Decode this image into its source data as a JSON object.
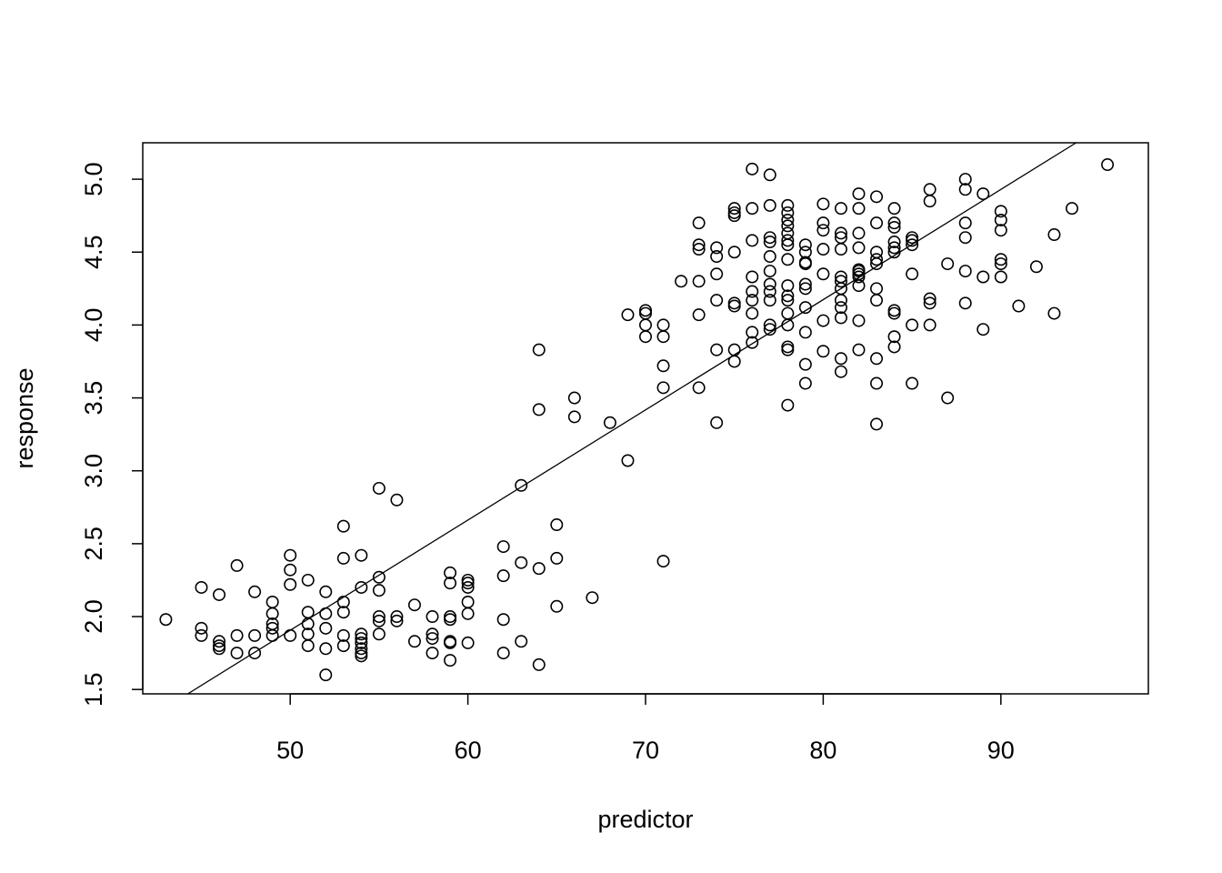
{
  "chart_data": {
    "type": "scatter",
    "title": "",
    "xlabel": "predictor",
    "ylabel": "response",
    "xlim": [
      41.7,
      98.3
    ],
    "ylim": [
      1.47,
      5.25
    ],
    "x_ticks": [
      50,
      60,
      70,
      80,
      90
    ],
    "y_ticks": [
      1.5,
      2.0,
      2.5,
      3.0,
      3.5,
      4.0,
      4.5,
      5.0
    ],
    "x_tick_labels": [
      "50",
      "60",
      "70",
      "80",
      "90"
    ],
    "y_tick_labels": [
      "1.5",
      "2.0",
      "2.5",
      "3.0",
      "3.5",
      "4.0",
      "4.5",
      "5.0"
    ],
    "grid": false,
    "legend": "none",
    "fit_line": {
      "intercept": -1.874,
      "slope": 0.0756
    },
    "marker_color": "#000000",
    "points": [
      [
        43,
        1.98
      ],
      [
        45,
        2.2
      ],
      [
        45,
        1.92
      ],
      [
        45,
        1.87
      ],
      [
        46,
        1.8
      ],
      [
        46,
        1.83
      ],
      [
        46,
        2.15
      ],
      [
        46,
        1.78
      ],
      [
        47,
        1.75
      ],
      [
        47,
        1.87
      ],
      [
        47,
        2.35
      ],
      [
        48,
        1.87
      ],
      [
        48,
        2.17
      ],
      [
        48,
        1.75
      ],
      [
        49,
        1.95
      ],
      [
        49,
        2.02
      ],
      [
        49,
        1.87
      ],
      [
        49,
        1.92
      ],
      [
        49,
        2.1
      ],
      [
        50,
        2.42
      ],
      [
        50,
        2.32
      ],
      [
        50,
        2.22
      ],
      [
        50,
        1.87
      ],
      [
        51,
        2.25
      ],
      [
        51,
        2.03
      ],
      [
        51,
        1.95
      ],
      [
        51,
        1.88
      ],
      [
        51,
        1.8
      ],
      [
        52,
        2.17
      ],
      [
        52,
        2.02
      ],
      [
        52,
        1.92
      ],
      [
        52,
        1.78
      ],
      [
        52,
        1.6
      ],
      [
        53,
        2.62
      ],
      [
        53,
        2.4
      ],
      [
        53,
        2.1
      ],
      [
        53,
        2.03
      ],
      [
        53,
        1.87
      ],
      [
        53,
        1.8
      ],
      [
        54,
        2.42
      ],
      [
        54,
        2.2
      ],
      [
        54,
        1.88
      ],
      [
        54,
        1.85
      ],
      [
        54,
        1.82
      ],
      [
        54,
        1.78
      ],
      [
        54,
        1.75
      ],
      [
        54,
        1.73
      ],
      [
        55,
        2.88
      ],
      [
        55,
        2.27
      ],
      [
        55,
        2.18
      ],
      [
        55,
        2.0
      ],
      [
        55,
        1.97
      ],
      [
        55,
        1.88
      ],
      [
        56,
        2.8
      ],
      [
        56,
        2.0
      ],
      [
        56,
        1.97
      ],
      [
        57,
        2.08
      ],
      [
        57,
        1.83
      ],
      [
        58,
        2.0
      ],
      [
        58,
        1.88
      ],
      [
        58,
        1.85
      ],
      [
        58,
        1.75
      ],
      [
        59,
        2.3
      ],
      [
        59,
        2.23
      ],
      [
        59,
        2.0
      ],
      [
        59,
        1.98
      ],
      [
        59,
        1.83
      ],
      [
        59,
        1.82
      ],
      [
        59,
        1.7
      ],
      [
        60,
        2.25
      ],
      [
        60,
        2.23
      ],
      [
        60,
        2.2
      ],
      [
        60,
        2.1
      ],
      [
        60,
        2.02
      ],
      [
        60,
        1.82
      ],
      [
        62,
        2.48
      ],
      [
        62,
        2.28
      ],
      [
        62,
        1.98
      ],
      [
        62,
        1.75
      ],
      [
        63,
        2.9
      ],
      [
        63,
        2.37
      ],
      [
        63,
        1.83
      ],
      [
        64,
        3.83
      ],
      [
        64,
        3.42
      ],
      [
        64,
        2.33
      ],
      [
        64,
        1.67
      ],
      [
        65,
        2.63
      ],
      [
        65,
        2.4
      ],
      [
        65,
        2.07
      ],
      [
        66,
        3.5
      ],
      [
        66,
        3.37
      ],
      [
        67,
        2.13
      ],
      [
        68,
        3.33
      ],
      [
        69,
        4.07
      ],
      [
        69,
        3.07
      ],
      [
        70,
        4.1
      ],
      [
        70,
        4.08
      ],
      [
        70,
        4.0
      ],
      [
        70,
        3.92
      ],
      [
        71,
        4.0
      ],
      [
        71,
        3.92
      ],
      [
        71,
        3.72
      ],
      [
        71,
        3.57
      ],
      [
        71,
        2.38
      ],
      [
        72,
        4.3
      ],
      [
        73,
        4.7
      ],
      [
        73,
        4.55
      ],
      [
        73,
        4.52
      ],
      [
        73,
        4.3
      ],
      [
        73,
        4.07
      ],
      [
        73,
        3.57
      ],
      [
        74,
        4.53
      ],
      [
        74,
        4.47
      ],
      [
        74,
        4.35
      ],
      [
        74,
        4.17
      ],
      [
        74,
        3.83
      ],
      [
        74,
        3.33
      ],
      [
        75,
        4.8
      ],
      [
        75,
        4.77
      ],
      [
        75,
        4.75
      ],
      [
        75,
        4.5
      ],
      [
        75,
        4.15
      ],
      [
        75,
        4.13
      ],
      [
        75,
        3.83
      ],
      [
        75,
        3.75
      ],
      [
        76,
        5.07
      ],
      [
        76,
        4.8
      ],
      [
        76,
        4.58
      ],
      [
        76,
        4.33
      ],
      [
        76,
        4.23
      ],
      [
        76,
        4.17
      ],
      [
        76,
        4.08
      ],
      [
        76,
        3.95
      ],
      [
        76,
        3.88
      ],
      [
        77,
        5.03
      ],
      [
        77,
        4.82
      ],
      [
        77,
        4.6
      ],
      [
        77,
        4.57
      ],
      [
        77,
        4.47
      ],
      [
        77,
        4.37
      ],
      [
        77,
        4.28
      ],
      [
        77,
        4.23
      ],
      [
        77,
        4.17
      ],
      [
        77,
        4.0
      ],
      [
        77,
        3.97
      ],
      [
        78,
        4.82
      ],
      [
        78,
        4.77
      ],
      [
        78,
        4.72
      ],
      [
        78,
        4.68
      ],
      [
        78,
        4.63
      ],
      [
        78,
        4.58
      ],
      [
        78,
        4.55
      ],
      [
        78,
        4.45
      ],
      [
        78,
        4.27
      ],
      [
        78,
        4.2
      ],
      [
        78,
        4.17
      ],
      [
        78,
        4.08
      ],
      [
        78,
        4.0
      ],
      [
        78,
        3.85
      ],
      [
        78,
        3.83
      ],
      [
        78,
        3.45
      ],
      [
        79,
        4.55
      ],
      [
        79,
        4.5
      ],
      [
        79,
        4.43
      ],
      [
        79,
        4.42
      ],
      [
        79,
        4.28
      ],
      [
        79,
        4.25
      ],
      [
        79,
        4.12
      ],
      [
        79,
        3.95
      ],
      [
        79,
        3.73
      ],
      [
        79,
        3.6
      ],
      [
        80,
        4.83
      ],
      [
        80,
        4.7
      ],
      [
        80,
        4.65
      ],
      [
        80,
        4.52
      ],
      [
        80,
        4.35
      ],
      [
        80,
        4.03
      ],
      [
        80,
        3.82
      ],
      [
        81,
        4.8
      ],
      [
        81,
        4.63
      ],
      [
        81,
        4.6
      ],
      [
        81,
        4.52
      ],
      [
        81,
        4.33
      ],
      [
        81,
        4.3
      ],
      [
        81,
        4.25
      ],
      [
        81,
        4.17
      ],
      [
        81,
        4.12
      ],
      [
        81,
        4.05
      ],
      [
        81,
        3.77
      ],
      [
        81,
        3.68
      ],
      [
        82,
        4.9
      ],
      [
        82,
        4.8
      ],
      [
        82,
        4.63
      ],
      [
        82,
        4.53
      ],
      [
        82,
        4.38
      ],
      [
        82,
        4.37
      ],
      [
        82,
        4.35
      ],
      [
        82,
        4.33
      ],
      [
        82,
        4.27
      ],
      [
        82,
        4.03
      ],
      [
        82,
        3.83
      ],
      [
        83,
        4.88
      ],
      [
        83,
        4.7
      ],
      [
        83,
        4.5
      ],
      [
        83,
        4.45
      ],
      [
        83,
        4.42
      ],
      [
        83,
        4.25
      ],
      [
        83,
        4.17
      ],
      [
        83,
        3.77
      ],
      [
        83,
        3.6
      ],
      [
        83,
        3.32
      ],
      [
        84,
        4.8
      ],
      [
        84,
        4.7
      ],
      [
        84,
        4.67
      ],
      [
        84,
        4.57
      ],
      [
        84,
        4.53
      ],
      [
        84,
        4.5
      ],
      [
        84,
        4.1
      ],
      [
        84,
        4.08
      ],
      [
        84,
        3.92
      ],
      [
        84,
        3.85
      ],
      [
        85,
        4.6
      ],
      [
        85,
        4.58
      ],
      [
        85,
        4.55
      ],
      [
        85,
        4.35
      ],
      [
        85,
        4.0
      ],
      [
        85,
        3.6
      ],
      [
        86,
        4.93
      ],
      [
        86,
        4.85
      ],
      [
        86,
        4.18
      ],
      [
        86,
        4.15
      ],
      [
        86,
        4.0
      ],
      [
        87,
        4.42
      ],
      [
        87,
        3.5
      ],
      [
        88,
        5.0
      ],
      [
        88,
        4.93
      ],
      [
        88,
        4.7
      ],
      [
        88,
        4.6
      ],
      [
        88,
        4.37
      ],
      [
        88,
        4.15
      ],
      [
        89,
        4.9
      ],
      [
        89,
        4.33
      ],
      [
        89,
        3.97
      ],
      [
        90,
        4.78
      ],
      [
        90,
        4.72
      ],
      [
        90,
        4.65
      ],
      [
        90,
        4.45
      ],
      [
        90,
        4.42
      ],
      [
        90,
        4.33
      ],
      [
        91,
        4.13
      ],
      [
        92,
        4.4
      ],
      [
        93,
        4.62
      ],
      [
        93,
        4.08
      ],
      [
        94,
        4.8
      ],
      [
        96,
        5.1
      ]
    ]
  }
}
